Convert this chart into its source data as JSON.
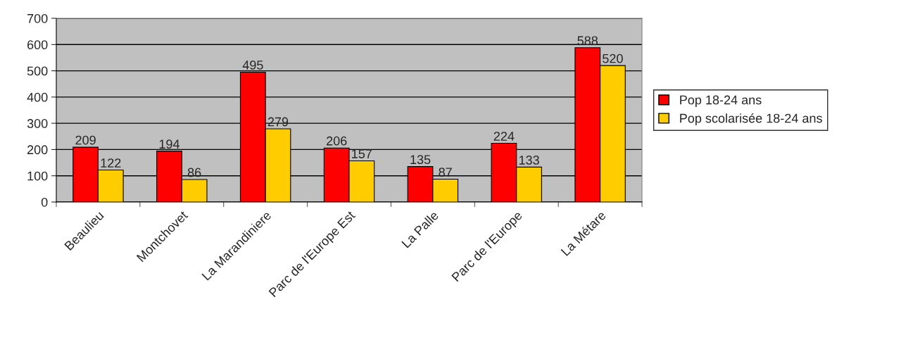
{
  "chart_data": {
    "type": "bar",
    "categories": [
      "Beaulieu",
      "Montchovet",
      "La Marandiniere",
      "Parc de l'Europe Est",
      "La Palle",
      "Parc de l'Europe",
      "La Métare"
    ],
    "series": [
      {
        "name": "Pop 18-24 ans",
        "color": "#ff0000",
        "values": [
          209,
          194,
          495,
          206,
          135,
          224,
          588
        ]
      },
      {
        "name": "Pop scolarisée 18-24 ans",
        "color": "#ffcc00",
        "values": [
          122,
          86,
          279,
          157,
          87,
          133,
          520
        ]
      }
    ],
    "ylim": [
      0,
      700
    ],
    "yticks": [
      0,
      100,
      200,
      300,
      400,
      500,
      600,
      700
    ],
    "grid": "y",
    "legend": "right",
    "data_labels": true
  }
}
